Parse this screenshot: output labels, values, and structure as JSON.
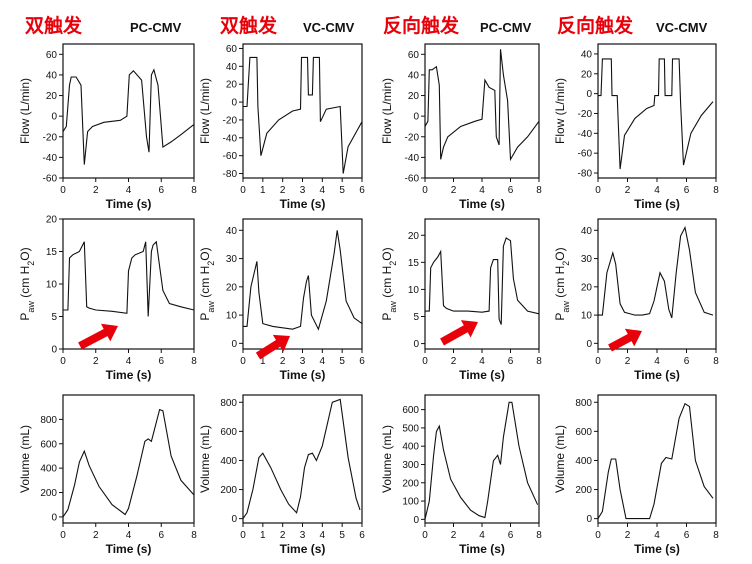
{
  "columns": [
    {
      "zh_title": "双触发",
      "mode": "PC-CMV"
    },
    {
      "zh_title": "双触发",
      "mode": "VC-CMV"
    },
    {
      "zh_title": "反向触发",
      "mode": "PC-CMV"
    },
    {
      "zh_title": "反向触发",
      "mode": "VC-CMV"
    }
  ],
  "colors": {
    "title_red": "#e8000b",
    "arrow_red": "#e8000b",
    "line": "#111111"
  },
  "chart_data": [
    {
      "type": "line",
      "row": "flow",
      "column": 1,
      "xlabel": "Time (s)",
      "ylabel": "Flow (L/min)",
      "xlim": [
        0,
        8
      ],
      "ylim": [
        -60,
        70
      ],
      "xticks": [
        0,
        2,
        4,
        6,
        8
      ],
      "yticks": [
        -60,
        -40,
        -20,
        0,
        20,
        40,
        60
      ],
      "x": [
        0,
        0.2,
        0.4,
        0.5,
        0.8,
        1.1,
        1.3,
        1.5,
        1.8,
        2.5,
        3.5,
        3.9,
        4.05,
        4.3,
        4.8,
        5.1,
        5.25,
        5.4,
        5.55,
        5.8,
        6.1,
        6.6,
        7.2,
        8
      ],
      "y": [
        -15,
        -10,
        30,
        38,
        38,
        30,
        -47,
        -15,
        -10,
        -6,
        -4,
        0,
        40,
        44,
        35,
        -20,
        -35,
        40,
        45,
        30,
        -30,
        -25,
        -18,
        -8
      ]
    },
    {
      "type": "line",
      "row": "flow",
      "column": 2,
      "xlabel": "Time (s)",
      "ylabel": "Flow (L/min)",
      "xlim": [
        0,
        6
      ],
      "ylim": [
        -85,
        65
      ],
      "xticks": [
        0,
        1,
        2,
        3,
        4,
        5,
        6
      ],
      "yticks": [
        -80,
        -60,
        -40,
        -20,
        0,
        20,
        40,
        60
      ],
      "x": [
        0,
        0.2,
        0.35,
        0.7,
        0.75,
        0.9,
        1.2,
        1.8,
        2.5,
        2.9,
        2.95,
        3.25,
        3.3,
        3.5,
        3.55,
        3.85,
        3.9,
        4.2,
        4.9,
        5.05,
        5.3,
        5.8,
        6
      ],
      "y": [
        -5,
        -5,
        50,
        50,
        -5,
        -60,
        -35,
        -20,
        -10,
        -8,
        50,
        50,
        8,
        8,
        50,
        50,
        -22,
        -8,
        -5,
        -80,
        -50,
        -30,
        -22
      ]
    },
    {
      "type": "line",
      "row": "flow",
      "column": 3,
      "xlabel": "Time (s)",
      "ylabel": "Flow (L/min)",
      "xlim": [
        0,
        8
      ],
      "ylim": [
        -60,
        70
      ],
      "xticks": [
        0,
        2,
        4,
        6,
        8
      ],
      "yticks": [
        -60,
        -40,
        -20,
        0,
        20,
        40,
        60
      ],
      "x": [
        0,
        0.2,
        0.3,
        0.5,
        0.8,
        1.0,
        1.1,
        1.3,
        1.6,
        2.5,
        3.5,
        4.0,
        4.2,
        4.5,
        4.9,
        5.0,
        5.2,
        5.3,
        5.5,
        5.8,
        6.0,
        6.5,
        7.2,
        8
      ],
      "y": [
        -10,
        -5,
        45,
        45,
        48,
        30,
        -42,
        -30,
        -20,
        -10,
        -5,
        -3,
        35,
        28,
        25,
        -20,
        -28,
        65,
        40,
        15,
        -42,
        -30,
        -20,
        -5
      ]
    },
    {
      "type": "line",
      "row": "flow",
      "column": 4,
      "xlabel": "Time (s)",
      "ylabel": "Flow (L/min)",
      "xlim": [
        0,
        8
      ],
      "ylim": [
        -85,
        50
      ],
      "xticks": [
        0,
        2,
        4,
        6,
        8
      ],
      "yticks": [
        -80,
        -60,
        -40,
        -20,
        0,
        20,
        40
      ],
      "x": [
        0,
        0.2,
        0.3,
        0.9,
        0.95,
        1.3,
        1.5,
        1.8,
        2.5,
        3.3,
        3.8,
        3.85,
        4.1,
        4.15,
        4.5,
        4.55,
        5.0,
        5.05,
        5.5,
        5.6,
        5.8,
        6.3,
        7.0,
        7.8
      ],
      "y": [
        -2,
        -2,
        35,
        35,
        -2,
        -2,
        -76,
        -42,
        -25,
        -15,
        -12,
        -2,
        -2,
        35,
        35,
        -2,
        -2,
        35,
        35,
        -10,
        -72,
        -40,
        -22,
        -8
      ]
    },
    {
      "type": "line",
      "row": "pressure",
      "column": 1,
      "xlabel": "Time (s)",
      "ylabel": "Paw (cm H2O)",
      "xlim": [
        0,
        8
      ],
      "ylim": [
        0,
        20
      ],
      "xticks": [
        0,
        2,
        4,
        6,
        8
      ],
      "yticks": [
        0,
        5,
        10,
        15,
        20
      ],
      "x": [
        0,
        0.3,
        0.4,
        0.6,
        1.0,
        1.3,
        1.45,
        1.6,
        2.0,
        3.0,
        3.9,
        4.0,
        4.2,
        4.4,
        4.9,
        5.05,
        5.2,
        5.4,
        5.5,
        5.7,
        6.1,
        6.5,
        7.2,
        8
      ],
      "y": [
        6,
        6,
        14,
        14.5,
        15,
        16.5,
        6.5,
        6.3,
        6,
        5.8,
        5.5,
        12,
        14,
        14.5,
        15,
        16.5,
        5,
        15,
        16,
        16.5,
        9,
        7,
        6.5,
        6
      ]
    },
    {
      "type": "line",
      "row": "pressure",
      "column": 2,
      "xlabel": "Time (s)",
      "ylabel": "Paw (cm H2O)",
      "xlim": [
        0,
        6
      ],
      "ylim": [
        -2,
        44
      ],
      "xticks": [
        0,
        1,
        2,
        3,
        4,
        5,
        6
      ],
      "yticks": [
        0,
        10,
        20,
        30,
        40
      ],
      "x": [
        0,
        0.2,
        0.4,
        0.6,
        0.7,
        0.8,
        1.0,
        1.5,
        2.0,
        2.5,
        2.9,
        3.05,
        3.2,
        3.3,
        3.45,
        3.8,
        4.2,
        4.6,
        4.75,
        4.9,
        5.2,
        5.6,
        6
      ],
      "y": [
        6,
        6,
        20,
        26,
        29,
        18,
        7,
        6,
        5.5,
        5,
        6,
        16,
        22,
        24,
        10,
        5,
        15,
        32,
        40,
        33,
        15,
        9,
        7
      ]
    },
    {
      "type": "line",
      "row": "pressure",
      "column": 3,
      "xlabel": "Time (s)",
      "ylabel": "Paw (cm H2O)",
      "xlim": [
        0,
        8
      ],
      "ylim": [
        -1,
        23
      ],
      "xticks": [
        0,
        2,
        4,
        6,
        8
      ],
      "yticks": [
        0,
        5,
        10,
        15,
        20
      ],
      "x": [
        0,
        0.3,
        0.4,
        0.6,
        0.9,
        1.1,
        1.3,
        1.5,
        2.0,
        3.0,
        4.0,
        4.5,
        4.6,
        4.8,
        5.1,
        5.2,
        5.35,
        5.5,
        5.7,
        6.0,
        6.2,
        6.5,
        7.2,
        8
      ],
      "y": [
        6,
        6,
        14,
        15,
        16,
        17,
        7,
        6.5,
        6,
        6,
        5.8,
        6,
        14,
        15.5,
        15.5,
        4.5,
        3.5,
        18,
        19.5,
        19,
        12,
        8,
        6,
        5.5
      ]
    },
    {
      "type": "line",
      "row": "pressure",
      "column": 4,
      "xlabel": "Time (s)",
      "ylabel": "Paw (cm H2O)",
      "xlim": [
        0,
        8
      ],
      "ylim": [
        -2,
        44
      ],
      "xticks": [
        0,
        2,
        4,
        6,
        8
      ],
      "yticks": [
        0,
        10,
        20,
        30,
        40
      ],
      "x": [
        0,
        0.3,
        0.6,
        1.0,
        1.2,
        1.5,
        1.8,
        2.5,
        3.0,
        3.5,
        3.8,
        4.2,
        4.5,
        4.8,
        5.0,
        5.3,
        5.6,
        5.9,
        6.2,
        6.6,
        7.2,
        7.8
      ],
      "y": [
        10,
        10,
        25,
        32,
        28,
        14,
        11,
        10,
        10,
        10.5,
        15,
        25,
        22,
        12,
        9,
        25,
        38,
        41,
        33,
        18,
        11,
        10
      ]
    },
    {
      "type": "line",
      "row": "volume",
      "column": 1,
      "xlabel": "Time (s)",
      "ylabel": "Volume (mL)",
      "xlim": [
        0,
        8
      ],
      "ylim": [
        -50,
        1000
      ],
      "xticks": [
        0,
        2,
        4,
        6,
        8
      ],
      "yticks": [
        0,
        200,
        400,
        600,
        800
      ],
      "x": [
        0,
        0.3,
        0.7,
        1.0,
        1.3,
        1.6,
        2.2,
        3.0,
        3.8,
        4.0,
        4.5,
        5.0,
        5.2,
        5.4,
        5.9,
        6.1,
        6.6,
        7.2,
        8
      ],
      "y": [
        0,
        60,
        260,
        450,
        540,
        420,
        250,
        100,
        20,
        70,
        330,
        620,
        640,
        620,
        880,
        870,
        500,
        300,
        180
      ]
    },
    {
      "type": "line",
      "row": "volume",
      "column": 2,
      "xlabel": "Time (s)",
      "ylabel": "Volume (mL)",
      "xlim": [
        0,
        6
      ],
      "ylim": [
        -30,
        850
      ],
      "xticks": [
        0,
        1,
        2,
        3,
        4,
        5,
        6
      ],
      "yticks": [
        0,
        200,
        400,
        600,
        800
      ],
      "x": [
        0,
        0.2,
        0.5,
        0.8,
        1.0,
        1.4,
        1.9,
        2.3,
        2.7,
        2.9,
        3.1,
        3.3,
        3.5,
        3.7,
        4.0,
        4.5,
        4.9,
        5.3,
        5.7,
        5.9
      ],
      "y": [
        0,
        40,
        200,
        420,
        450,
        350,
        200,
        100,
        40,
        150,
        350,
        440,
        450,
        400,
        500,
        800,
        820,
        420,
        140,
        60
      ]
    },
    {
      "type": "line",
      "row": "volume",
      "column": 3,
      "xlabel": "Time (s)",
      "ylabel": "Volume (mL)",
      "xlim": [
        0,
        8
      ],
      "ylim": [
        -20,
        680
      ],
      "xticks": [
        0,
        2,
        4,
        6,
        8
      ],
      "yticks": [
        0,
        100,
        200,
        300,
        400,
        500,
        600
      ],
      "x": [
        0,
        0.3,
        0.6,
        0.8,
        1.0,
        1.3,
        1.8,
        2.5,
        3.2,
        3.8,
        4.2,
        4.4,
        4.8,
        5.1,
        5.3,
        5.5,
        5.9,
        6.1,
        6.6,
        7.2,
        7.9
      ],
      "y": [
        0,
        100,
        350,
        480,
        510,
        380,
        220,
        120,
        50,
        20,
        10,
        100,
        320,
        350,
        300,
        450,
        640,
        640,
        400,
        200,
        80
      ]
    },
    {
      "type": "line",
      "row": "volume",
      "column": 4,
      "xlabel": "Time (s)",
      "ylabel": "Volume (mL)",
      "xlim": [
        0,
        8
      ],
      "ylim": [
        -30,
        850
      ],
      "xticks": [
        0,
        2,
        4,
        6,
        8
      ],
      "yticks": [
        0,
        200,
        400,
        600,
        800
      ],
      "x": [
        0,
        0.3,
        0.7,
        0.9,
        1.2,
        1.5,
        1.9,
        2.5,
        3.0,
        3.5,
        3.8,
        4.3,
        4.6,
        5.0,
        5.5,
        5.9,
        6.2,
        6.6,
        7.2,
        7.8
      ],
      "y": [
        0,
        50,
        320,
        410,
        410,
        200,
        0,
        0,
        0,
        0,
        100,
        380,
        420,
        410,
        690,
        790,
        770,
        400,
        220,
        140
      ]
    }
  ]
}
